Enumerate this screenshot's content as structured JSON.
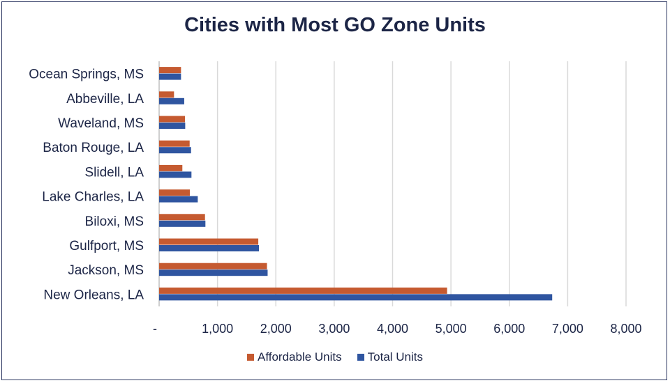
{
  "chart_data": {
    "type": "bar",
    "orientation": "horizontal",
    "title": "Cities with Most GO Zone Units",
    "categories": [
      "Ocean Springs, MS",
      "Abbeville, LA",
      "Waveland, MS",
      "Baton Rouge, LA",
      "Slidell, LA",
      "Lake Charles, LA",
      "Biloxi, MS",
      "Gulfport, MS",
      "Jackson, MS",
      "New Orleans, LA"
    ],
    "series": [
      {
        "name": "Affordable Units",
        "color": "#c55a30",
        "values": [
          375,
          255,
          443,
          523,
          398,
          526,
          786,
          1699,
          1848,
          4934
        ]
      },
      {
        "name": "Total Units",
        "color": "#2f55a0",
        "values": [
          375,
          430,
          447,
          547,
          554,
          662,
          793,
          1710,
          1859,
          6735
        ]
      }
    ],
    "xlim": [
      0,
      8000
    ],
    "x_ticks": [
      0,
      1000,
      2000,
      3000,
      4000,
      5000,
      6000,
      7000,
      8000
    ],
    "x_tick_labels": [
      "-",
      "1,000",
      "2,000",
      "3,000",
      "4,000",
      "5,000",
      "6,000",
      "7,000",
      "8,000"
    ],
    "grid": "vertical",
    "legend": "bottom"
  }
}
